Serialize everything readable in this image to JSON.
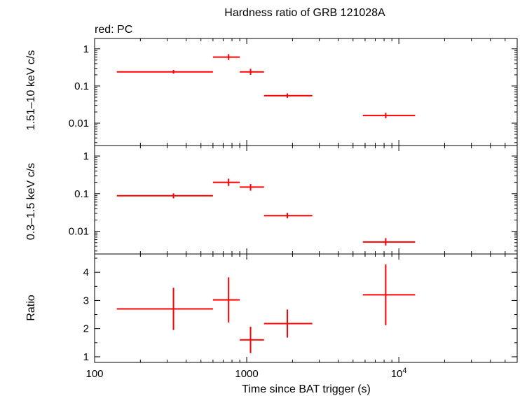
{
  "chart_data": {
    "type": "scatter",
    "title": "Hardness ratio of GRB 121028A",
    "subtitle": "red: PC",
    "xlabel": "Time since BAT trigger (s)",
    "x_scale": "log",
    "xlim": [
      100,
      60000
    ],
    "x_ticks": [
      {
        "value": 100,
        "label": "100"
      },
      {
        "value": 1000,
        "label": "1000"
      },
      {
        "value": 10000,
        "label": "10",
        "exp": "4"
      }
    ],
    "grid": false,
    "color": "#ff0000",
    "panels": [
      {
        "id": "hard",
        "ylabel": "1.51–10 keV c/s",
        "y_scale": "log",
        "ylim": [
          0.0025,
          1.9
        ],
        "y_ticks": [
          {
            "value": 0.01,
            "label": "0.01"
          },
          {
            "value": 0.1,
            "label": "0.1"
          },
          {
            "value": 1,
            "label": "1"
          }
        ],
        "points": [
          {
            "x": 330,
            "xlo": 140,
            "xhi": 600,
            "y": 0.24,
            "ylo": 0.215,
            "yhi": 0.27
          },
          {
            "x": 760,
            "xlo": 600,
            "xhi": 900,
            "y": 0.6,
            "ylo": 0.5,
            "yhi": 0.72
          },
          {
            "x": 1060,
            "xlo": 900,
            "xhi": 1300,
            "y": 0.24,
            "ylo": 0.2,
            "yhi": 0.29
          },
          {
            "x": 1850,
            "xlo": 1300,
            "xhi": 2700,
            "y": 0.055,
            "ylo": 0.048,
            "yhi": 0.063
          },
          {
            "x": 8200,
            "xlo": 5800,
            "xhi": 12800,
            "y": 0.016,
            "ylo": 0.0135,
            "yhi": 0.019
          }
        ]
      },
      {
        "id": "soft",
        "ylabel": "0.3–1.5 keV c/s",
        "y_scale": "log",
        "ylim": [
          0.0025,
          1.9
        ],
        "y_ticks": [
          {
            "value": 0.01,
            "label": "0.01"
          },
          {
            "value": 0.1,
            "label": "0.1"
          },
          {
            "value": 1,
            "label": "1"
          }
        ],
        "points": [
          {
            "x": 330,
            "xlo": 140,
            "xhi": 600,
            "y": 0.088,
            "ylo": 0.075,
            "yhi": 0.102
          },
          {
            "x": 760,
            "xlo": 600,
            "xhi": 900,
            "y": 0.2,
            "ylo": 0.16,
            "yhi": 0.25
          },
          {
            "x": 1060,
            "xlo": 900,
            "xhi": 1300,
            "y": 0.15,
            "ylo": 0.12,
            "yhi": 0.18
          },
          {
            "x": 1850,
            "xlo": 1300,
            "xhi": 2700,
            "y": 0.026,
            "ylo": 0.022,
            "yhi": 0.031
          },
          {
            "x": 8200,
            "xlo": 5800,
            "xhi": 12800,
            "y": 0.0052,
            "ylo": 0.0042,
            "yhi": 0.0066
          }
        ]
      },
      {
        "id": "ratio",
        "ylabel": "Ratio",
        "y_scale": "linear",
        "ylim": [
          0.8,
          4.65
        ],
        "y_ticks": [
          {
            "value": 1,
            "label": "1"
          },
          {
            "value": 2,
            "label": "2"
          },
          {
            "value": 3,
            "label": "3"
          },
          {
            "value": 4,
            "label": "4"
          }
        ],
        "points": [
          {
            "x": 330,
            "xlo": 140,
            "xhi": 600,
            "y": 2.7,
            "ylo": 1.95,
            "yhi": 3.45
          },
          {
            "x": 760,
            "xlo": 600,
            "xhi": 900,
            "y": 3.02,
            "ylo": 2.22,
            "yhi": 3.82
          },
          {
            "x": 1060,
            "xlo": 900,
            "xhi": 1300,
            "y": 1.6,
            "ylo": 1.13,
            "yhi": 2.07
          },
          {
            "x": 1850,
            "xlo": 1300,
            "xhi": 2700,
            "y": 2.18,
            "ylo": 1.68,
            "yhi": 2.68
          },
          {
            "x": 8200,
            "xlo": 5800,
            "xhi": 12800,
            "y": 3.2,
            "ylo": 2.12,
            "yhi": 4.28
          }
        ]
      }
    ]
  }
}
